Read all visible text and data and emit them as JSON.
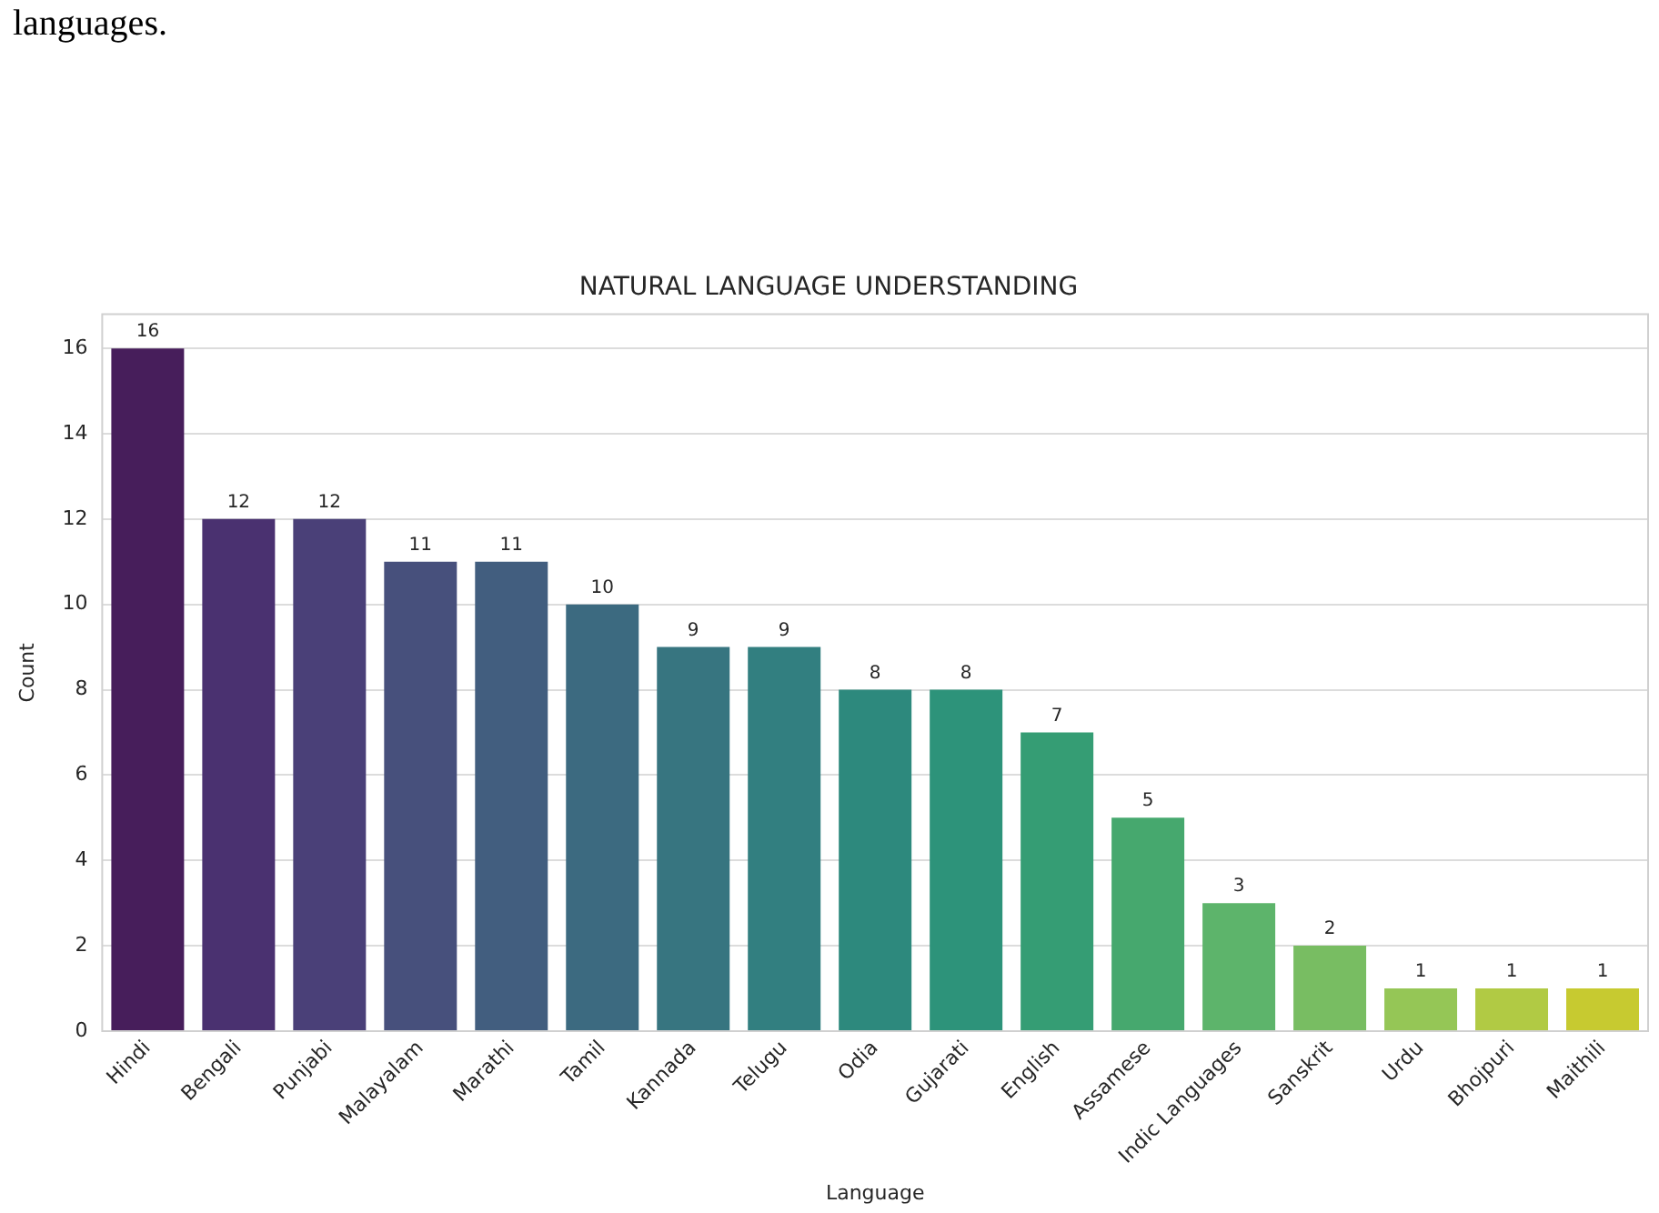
{
  "chart_data": {
    "type": "bar",
    "title": "NATURAL LANGUAGE UNDERSTANDING",
    "xlabel": "Language",
    "ylabel": "Count",
    "annotations": [
      "languages."
    ],
    "categories": [
      "Hindi",
      "Bengali",
      "Punjabi",
      "Malayalam",
      "Marathi",
      "Tamil",
      "Kannada",
      "Telugu",
      "Odia",
      "Gujarati",
      "English",
      "Assamese",
      "Indic Languages",
      "Sanskrit",
      "Urdu",
      "Bhojpuri",
      "Maithili"
    ],
    "values": [
      16,
      12,
      12,
      11,
      11,
      10,
      9,
      9,
      8,
      8,
      7,
      5,
      3,
      2,
      1,
      1,
      1
    ],
    "colors": [
      "#471e5b",
      "#4a3170",
      "#4a4078",
      "#47507c",
      "#425e7f",
      "#3c6a80",
      "#377580",
      "#327f80",
      "#2d897d",
      "#2d937a",
      "#359d74",
      "#46a86e",
      "#5db46b",
      "#78bd62",
      "#95c656",
      "#b1ca44",
      "#c7ca30"
    ],
    "ylim": [
      0,
      16.8
    ],
    "yticks": [
      0,
      2,
      4,
      6,
      8,
      10,
      12,
      14,
      16
    ],
    "grid": "y",
    "data_labels": true,
    "legend": false
  }
}
